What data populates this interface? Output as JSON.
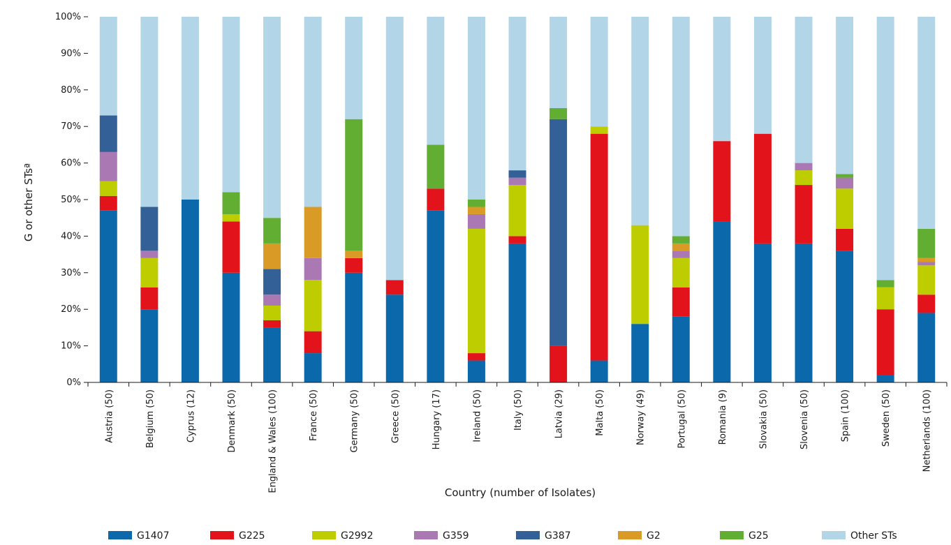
{
  "chart_data": {
    "type": "bar",
    "stacked": true,
    "title": "",
    "xlabel": "Country (number of Isolates)",
    "ylabel": "G or other STsª",
    "ylim": [
      0,
      100
    ],
    "y_ticks": [
      "0%",
      "10%",
      "20%",
      "30%",
      "40%",
      "50%",
      "60%",
      "70%",
      "80%",
      "90%",
      "100%"
    ],
    "legend_position": "bottom",
    "categories": [
      "Austria (50)",
      "Belgium (50)",
      "Cyprus (12)",
      "Denmark (50)",
      "England & Wales (100)",
      "France (50)",
      "Germany (50)",
      "Greece (50)",
      "Hungary (17)",
      "Ireland (50)",
      "Italy (50)",
      "Latvia (29)",
      "Malta (50)",
      "Norway (49)",
      "Portugal (50)",
      "Romania (9)",
      "Slovakia (50)",
      "Slovenia (50)",
      "Spain (100)",
      "Sweden (50)",
      "Netherlands (100)"
    ],
    "series": [
      {
        "name": "G1407",
        "color": "#0a68ab",
        "values": [
          47,
          20,
          50,
          30,
          15,
          8,
          30,
          24,
          47,
          6,
          38,
          0,
          6,
          16,
          18,
          44,
          38,
          38,
          36,
          2,
          19
        ]
      },
      {
        "name": "G225",
        "color": "#e3131b",
        "values": [
          4,
          6,
          0,
          14,
          2,
          6,
          4,
          4,
          6,
          2,
          2,
          10,
          62,
          0,
          8,
          22,
          30,
          16,
          6,
          18,
          5
        ]
      },
      {
        "name": "G2992",
        "color": "#bdcd00",
        "values": [
          4,
          8,
          0,
          2,
          4,
          14,
          0,
          0,
          0,
          34,
          14,
          0,
          2,
          27,
          8,
          0,
          0,
          4,
          11,
          6,
          8
        ]
      },
      {
        "name": "G359",
        "color": "#aa79b4",
        "values": [
          8,
          2,
          0,
          0,
          3,
          6,
          0,
          0,
          0,
          4,
          2,
          0,
          0,
          0,
          2,
          0,
          0,
          2,
          3,
          0,
          1
        ]
      },
      {
        "name": "G387",
        "color": "#336197",
        "values": [
          10,
          12,
          0,
          0,
          7,
          0,
          0,
          0,
          0,
          0,
          2,
          62,
          0,
          0,
          0,
          0,
          0,
          0,
          0,
          0,
          0
        ]
      },
      {
        "name": "G2",
        "color": "#d99b26",
        "values": [
          0,
          0,
          0,
          0,
          7,
          14,
          2,
          0,
          0,
          2,
          0,
          0,
          0,
          0,
          2,
          0,
          0,
          0,
          0,
          0,
          1
        ]
      },
      {
        "name": "G25",
        "color": "#62ae32",
        "values": [
          0,
          0,
          0,
          6,
          7,
          0,
          36,
          0,
          12,
          2,
          0,
          3,
          0,
          0,
          2,
          0,
          0,
          0,
          1,
          2,
          8
        ]
      },
      {
        "name": "Other STs",
        "color": "#b3d5e8",
        "values": [
          27,
          52,
          50,
          48,
          55,
          52,
          28,
          72,
          35,
          50,
          42,
          25,
          30,
          57,
          60,
          34,
          32,
          40,
          43,
          72,
          58
        ]
      }
    ]
  }
}
